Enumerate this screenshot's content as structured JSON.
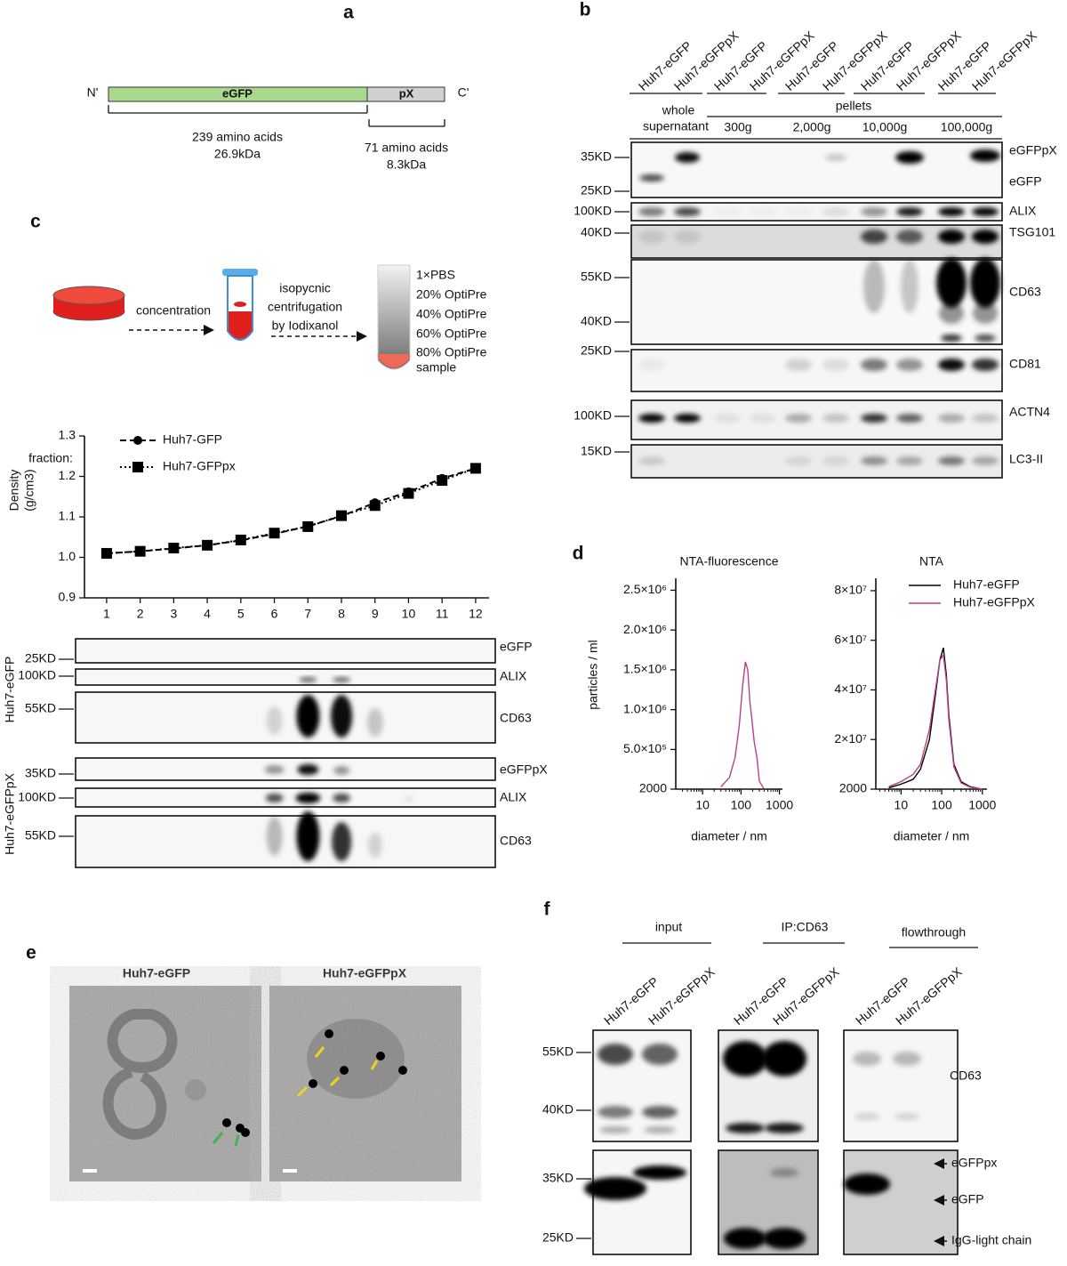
{
  "panel_a": {
    "label": "a",
    "n_term": "N'",
    "domains": [
      "eGFP",
      "pX"
    ],
    "c_term": "C'",
    "egfp_length": "239 amino acids",
    "egfp_mass": "26.9kDa",
    "px_length": "71 amino acids",
    "px_mass": "8.3kDa"
  },
  "panel_b": {
    "label": "b",
    "lanes": [
      "Huh7-eGFP",
      "Huh7-eGFPpX",
      "Huh7-eGFP",
      "Huh7-eGFPpX",
      "Huh7-eGFP",
      "Huh7-eGFPpX",
      "Huh7-eGFP",
      "Huh7-eGFPpX",
      "Huh7-eGFP",
      "Huh7-eGFPpX"
    ],
    "whole": [
      "whole",
      "supernatant"
    ],
    "pellets": "pellets",
    "fractions": [
      "300g",
      "2,000g",
      "10,000g",
      "100,000g"
    ],
    "blots": [
      {
        "markers": [
          "35KD",
          "25KD"
        ],
        "proteins": [
          "eGFPpX",
          "eGFP"
        ]
      },
      {
        "markers": [
          "100KD"
        ],
        "proteins": [
          "ALIX"
        ]
      },
      {
        "markers": [
          "40KD"
        ],
        "proteins": [
          "TSG101"
        ]
      },
      {
        "markers": [
          "55KD",
          "40KD"
        ],
        "proteins": [
          "CD63"
        ]
      },
      {
        "markers": [
          "25KD"
        ],
        "proteins": [
          "CD81"
        ]
      },
      {
        "markers": [
          "100KD"
        ],
        "proteins": [
          "ACTN4"
        ]
      },
      {
        "markers": [
          "15KD"
        ],
        "proteins": [
          "LC3-II"
        ]
      }
    ]
  },
  "panel_c": {
    "label": "c",
    "step_1": "concentration",
    "step_2": [
      "isopycnic",
      "centrifugation",
      "by Iodixanol"
    ],
    "layers": [
      "1×PBS",
      "20% OptiPre",
      "40% OptiPre",
      "60% OptiPre",
      "80% OptiPre",
      "sample"
    ],
    "blot_groups": [
      {
        "name": "Huh7-eGFP",
        "blots": [
          {
            "marker": "25KD",
            "protein": "eGFP"
          },
          {
            "marker": "100KD",
            "protein": "ALIX"
          },
          {
            "marker": "55KD",
            "protein": "CD63"
          }
        ]
      },
      {
        "name": "Huh7-eGFPpX",
        "blots": [
          {
            "marker": "35KD",
            "protein": "eGFPpX"
          },
          {
            "marker": "100KD",
            "protein": "ALIX"
          },
          {
            "marker": "55KD",
            "protein": "CD63"
          }
        ]
      }
    ]
  },
  "panel_d": {
    "label": "d"
  },
  "panel_e": {
    "label": "e",
    "images": [
      "Huh7-eGFP",
      "Huh7-eGFPpX"
    ]
  },
  "panel_f": {
    "label": "f",
    "groups": [
      "input",
      "IP:CD63",
      "flowthrough"
    ],
    "lanes": [
      "Huh7-eGFP",
      "Huh7-eGFPpX",
      "Huh7-eGFP",
      "Huh7-eGFPpX",
      "Huh7-eGFP",
      "Huh7-eGFPpX"
    ],
    "markers": [
      "55KD",
      "40KD",
      "35KD",
      "25KD"
    ],
    "upper_protein": "CD63",
    "lower_proteins": [
      "eGFPpx",
      "eGFP",
      "IgG-light chain"
    ]
  },
  "chart_data": [
    {
      "type": "line",
      "ylabel": [
        "Density",
        "(g/cm3)"
      ],
      "annotation": "fraction:",
      "x": [
        1,
        2,
        3,
        4,
        5,
        6,
        7,
        8,
        9,
        10,
        11,
        12
      ],
      "xlim": [
        0.34,
        12.4
      ],
      "xticks": [
        1,
        2,
        3,
        4,
        5,
        6,
        7,
        8,
        9,
        10,
        11,
        12
      ],
      "ylim": [
        0.9,
        1.3
      ],
      "yticks": [
        0.9,
        {
          "value": 1,
          "label": "1.0"
        },
        1.1,
        1.2,
        1.3
      ],
      "series": [
        {
          "name": "Huh7-GFP",
          "color": "#000000",
          "marker": "circle",
          "dash": "dashed",
          "values": [
            1.01,
            1.015,
            1.022,
            1.03,
            1.042,
            1.058,
            1.077,
            1.102,
            1.135,
            1.162,
            1.195,
            1.22
          ]
        },
        {
          "name": "Huh7-GFPpx",
          "color": "#000000",
          "marker": "square",
          "dash": "dotted",
          "values": [
            1.01,
            1.015,
            1.023,
            1.03,
            1.043,
            1.06,
            1.076,
            1.103,
            1.128,
            1.158,
            1.19,
            1.22
          ]
        }
      ]
    },
    {
      "type": "line",
      "title": "NTA-fluorescence",
      "ylabel": "particles / ml",
      "xlabel": "diameter / nm",
      "log_x": true,
      "x": [
        30,
        50,
        70,
        90,
        110,
        130,
        150,
        170,
        190,
        220,
        260,
        300,
        400
      ],
      "xlim": [
        2,
        1200
      ],
      "xticks": [
        10,
        100,
        1000
      ],
      "ylim": [
        2000,
        2650000
      ],
      "yticks": [
        2000,
        {
          "value": 500000,
          "label": "5.0×10⁵"
        },
        {
          "value": 1000000,
          "label": "1.0×10⁶"
        },
        {
          "value": 1500000,
          "label": "1.5×10⁶"
        },
        {
          "value": 2000000,
          "label": "2.0×10⁶"
        },
        {
          "value": 2500000,
          "label": "2.5×10⁶"
        }
      ],
      "series": [
        {
          "color": "#b5418a",
          "values": [
            30000,
            150000,
            400000,
            800000,
            1300000,
            1600000,
            1500000,
            1100000,
            900000,
            600000,
            400000,
            100000,
            2000
          ]
        }
      ]
    },
    {
      "type": "line",
      "title": "NTA",
      "xlabel": "diameter / nm",
      "log_x": true,
      "legend": "top-right",
      "x": [
        5,
        10,
        20,
        30,
        50,
        70,
        90,
        110,
        130,
        150,
        200,
        300,
        500,
        1000
      ],
      "xlim": [
        2.4,
        1300
      ],
      "xticks": [
        10,
        100,
        1000
      ],
      "ylim": [
        2000,
        85000000
      ],
      "yticks": [
        2000,
        {
          "value": 20000000,
          "label": "2×10⁷"
        },
        {
          "value": 40000000,
          "label": "4×10⁷"
        },
        {
          "value": 60000000,
          "label": "6×10⁷"
        },
        {
          "value": 80000000,
          "label": "8×10⁷"
        }
      ],
      "series": [
        {
          "name": "Huh7-eGFP",
          "color": "#000000",
          "values": [
            500000,
            2000000,
            4000000,
            8000000,
            20000000,
            38000000,
            52000000,
            57000000,
            46000000,
            30000000,
            10000000,
            3000000,
            1000000,
            2000
          ]
        },
        {
          "name": "Huh7-eGFPpX",
          "color": "#b5418a",
          "values": [
            1000000,
            3000000,
            6000000,
            10000000,
            24000000,
            40000000,
            52000000,
            54000000,
            44000000,
            28000000,
            9000000,
            2500000,
            800000,
            2000
          ]
        }
      ]
    }
  ]
}
